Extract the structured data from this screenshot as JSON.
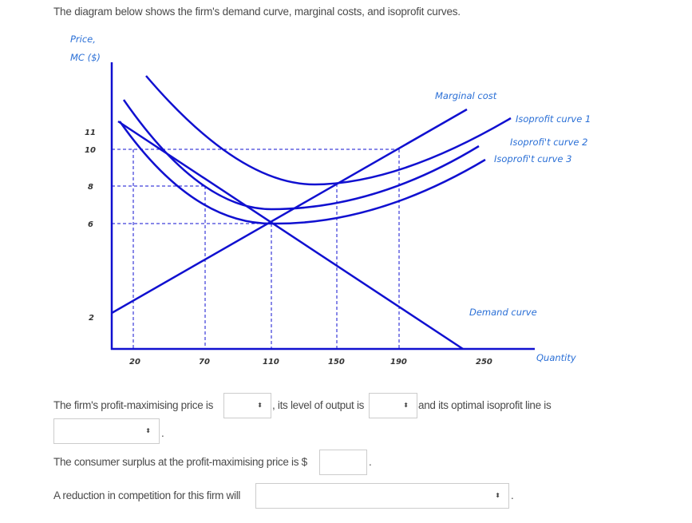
{
  "intro": "The diagram below shows the firm's demand curve, marginal costs, and isoprofit curves.",
  "diagram": {
    "y_axis_label_line1": "Price,",
    "y_axis_label_line2": "MC ($)",
    "x_axis_label": "Quantity",
    "y_ticks": [
      "11",
      "10",
      "8",
      "6",
      "2"
    ],
    "x_ticks": [
      "20",
      "70",
      "110",
      "150",
      "190",
      "250"
    ],
    "curve_labels": {
      "marginal_cost": "Marginal cost",
      "isoprofit_1": "Isoprofit curve 1",
      "isoprofit_2": "Isoprofi't curve 2",
      "isoprofit_3": "Isoprofi't curve 3",
      "demand": "Demand curve"
    },
    "line_color": "#1010d0"
  },
  "questions": {
    "q1_part1": "The firm's profit-maximising price is",
    "q1_part2": ", its level of output is",
    "q1_part3": "and its optimal isoprofit line is",
    "q1_end": ".",
    "q2": "The consumer surplus at the profit-maximising price is $",
    "q2_end": ".",
    "q3": "A reduction in competition for this firm will",
    "q3_end": ".",
    "dropdown_arrow": "⬍"
  }
}
